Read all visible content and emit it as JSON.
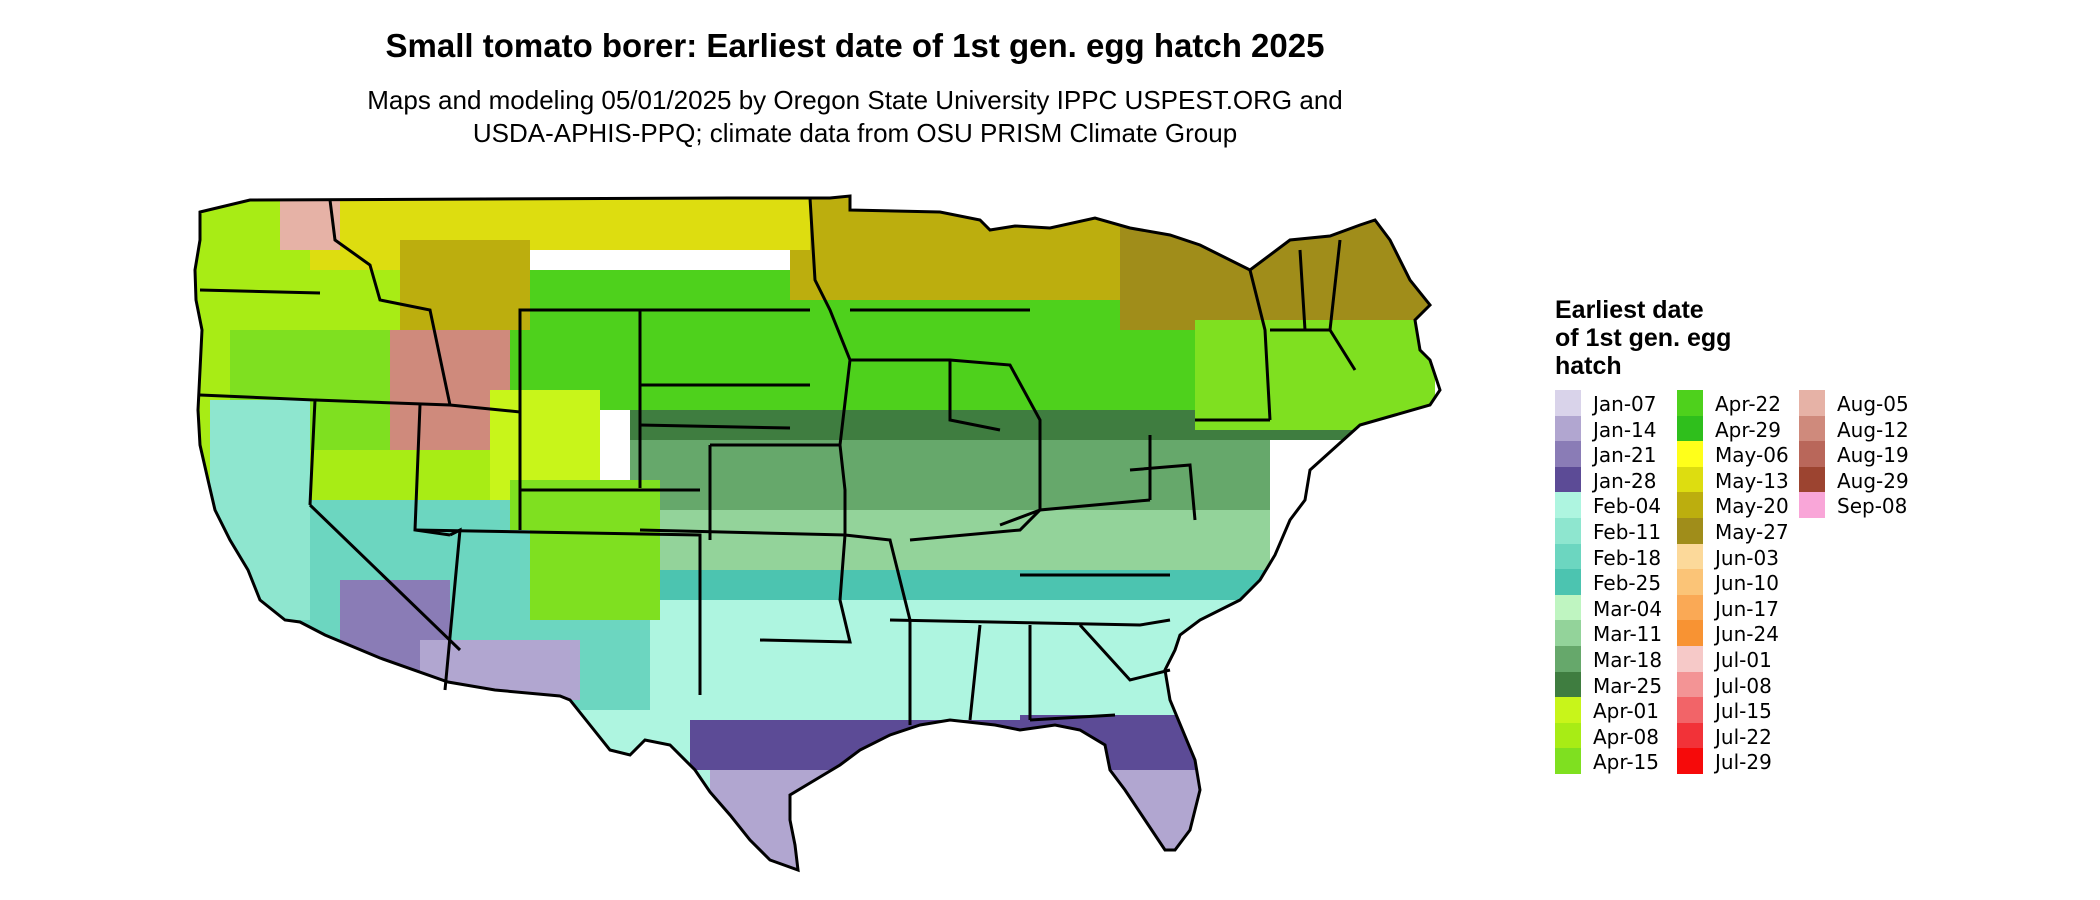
{
  "title": "Small tomato borer: Earliest date of 1st gen. egg hatch 2025",
  "subtitle_lines": [
    "Maps and modeling 05/01/2025 by Oregon State University IPPC USPEST.ORG and",
    "USDA-APHIS-PPQ; climate data from OSU PRISM Climate Group"
  ],
  "legend": {
    "title_lines": [
      "Earliest date",
      "of 1st gen. egg",
      "hatch"
    ],
    "columns": [
      [
        {
          "label": "Jan-07",
          "color": "#d9d3ea"
        },
        {
          "label": "Jan-14",
          "color": "#b1a6d0"
        },
        {
          "label": "Jan-21",
          "color": "#8a7cb6"
        },
        {
          "label": "Jan-28",
          "color": "#5c4b96"
        },
        {
          "label": "Feb-04",
          "color": "#aef5e0"
        },
        {
          "label": "Feb-11",
          "color": "#8ee6cf"
        },
        {
          "label": "Feb-18",
          "color": "#6cd6c0"
        },
        {
          "label": "Feb-25",
          "color": "#4cc4b0"
        },
        {
          "label": "Mar-04",
          "color": "#bff5c1"
        },
        {
          "label": "Mar-11",
          "color": "#93d39a"
        },
        {
          "label": "Mar-18",
          "color": "#66a86b"
        },
        {
          "label": "Mar-25",
          "color": "#3f7d40"
        },
        {
          "label": "Apr-01",
          "color": "#c8f51a"
        },
        {
          "label": "Apr-08",
          "color": "#a8ec15"
        },
        {
          "label": "Apr-15",
          "color": "#7fe020"
        }
      ],
      [
        {
          "label": "Apr-22",
          "color": "#4ed11c"
        },
        {
          "label": "Apr-29",
          "color": "#2fbf1c"
        },
        {
          "label": "May-06",
          "color": "#ffff1a"
        },
        {
          "label": "May-13",
          "color": "#dddd10"
        },
        {
          "label": "May-20",
          "color": "#bcae0e"
        },
        {
          "label": "May-27",
          "color": "#a08d1a"
        },
        {
          "label": "Jun-03",
          "color": "#fcd99a"
        },
        {
          "label": "Jun-10",
          "color": "#fbc477"
        },
        {
          "label": "Jun-17",
          "color": "#faa955"
        },
        {
          "label": "Jun-24",
          "color": "#f89333"
        },
        {
          "label": "Jul-01",
          "color": "#f6c9c8"
        },
        {
          "label": "Jul-08",
          "color": "#f39495"
        },
        {
          "label": "Jul-15",
          "color": "#f26468"
        },
        {
          "label": "Jul-22",
          "color": "#f23238"
        },
        {
          "label": "Jul-29",
          "color": "#f60a0a"
        }
      ],
      [
        {
          "label": "Aug-05",
          "color": "#e6b2a6"
        },
        {
          "label": "Aug-12",
          "color": "#cf8a7c"
        },
        {
          "label": "Aug-19",
          "color": "#b9675a"
        },
        {
          "label": "Aug-29",
          "color": "#9c4430"
        },
        {
          "label": "Sep-08",
          "color": "#f9a6d8"
        }
      ]
    ]
  }
}
